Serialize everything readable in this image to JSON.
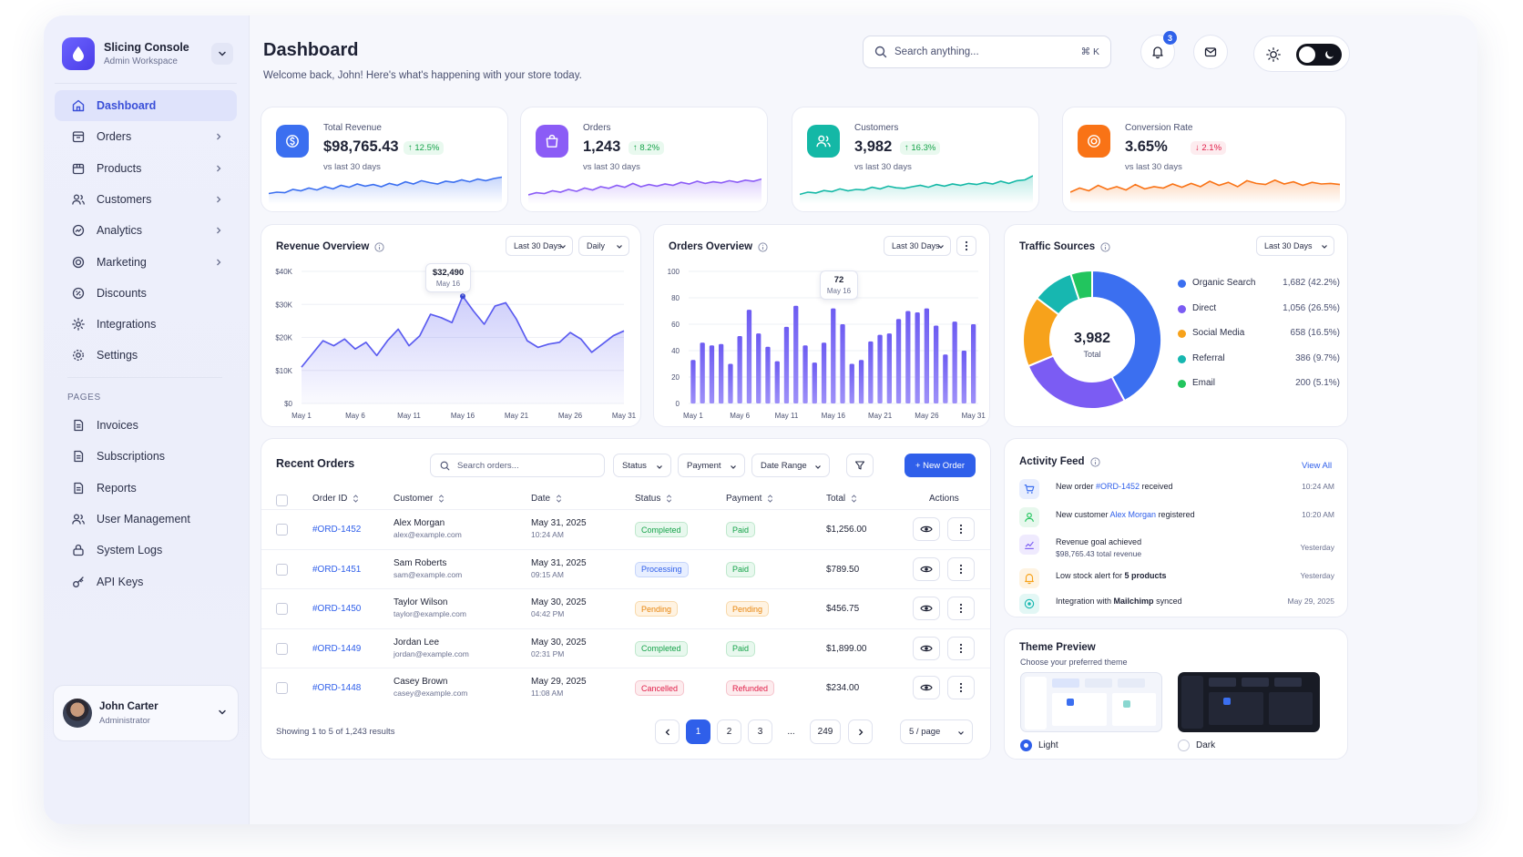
{
  "brand": {
    "title": "Slicing Console",
    "subtitle": "Admin Workspace"
  },
  "sidebar": {
    "items": [
      {
        "label": "Dashboard",
        "icon": "home-icon",
        "active": true
      },
      {
        "label": "Orders",
        "icon": "orders-icon"
      },
      {
        "label": "Products",
        "icon": "box-icon"
      },
      {
        "label": "Customers",
        "icon": "users-icon"
      },
      {
        "label": "Analytics",
        "icon": "analytics-icon"
      },
      {
        "label": "Marketing",
        "icon": "target-icon"
      },
      {
        "label": "Discounts",
        "icon": "discount-icon"
      },
      {
        "label": "Integrations",
        "icon": "gear-icon"
      },
      {
        "label": "Settings",
        "icon": "settings-icon"
      }
    ],
    "pages_label": "PAGES",
    "pages": [
      {
        "label": "Invoices",
        "icon": "document-icon"
      },
      {
        "label": "Subscriptions",
        "icon": "document-icon"
      },
      {
        "label": "Reports",
        "icon": "document-icon"
      },
      {
        "label": "User Management",
        "icon": "users-icon"
      },
      {
        "label": "System Logs",
        "icon": "lock-icon"
      },
      {
        "label": "API Keys",
        "icon": "key-icon"
      }
    ]
  },
  "user": {
    "name": "John Carter",
    "role": "Administrator"
  },
  "header": {
    "title": "Dashboard",
    "subtitle": "Welcome back, John! Here's what's happening with your store today.",
    "search_placeholder": "Search anything...",
    "search_shortcut": "⌘ K",
    "notification_count": "3"
  },
  "stats": [
    {
      "label": "Total Revenue",
      "value": "$98,765.43",
      "change": "↑ 12.5%",
      "trend": "up",
      "sub": "vs last 30 days",
      "color": "#3b6ff0",
      "icon": "dollar-icon"
    },
    {
      "label": "Orders",
      "value": "1,243",
      "change": "↑ 8.2%",
      "trend": "up",
      "sub": "vs last 30 days",
      "color": "#8b5cf6",
      "icon": "bag-icon"
    },
    {
      "label": "Customers",
      "value": "3,982",
      "change": "↑ 16.3%",
      "trend": "up",
      "sub": "vs last 30 days",
      "color": "#14b8a6",
      "icon": "users-icon"
    },
    {
      "label": "Conversion Rate",
      "value": "3.65%",
      "change": "↓ 2.1%",
      "trend": "down",
      "sub": "vs last 30 days",
      "color": "#f97316",
      "icon": "target-icon"
    }
  ],
  "revenue_overview": {
    "title": "Revenue Overview",
    "range": "Last 30 Days",
    "interval": "Daily",
    "tooltip": {
      "value": "$32,490",
      "date": "May 16"
    },
    "y_ticks": [
      "$40K",
      "$30K",
      "$20K",
      "$10K",
      "$0"
    ],
    "x_ticks": [
      "May 1",
      "May 6",
      "May 11",
      "May 16",
      "May 21",
      "May 26",
      "May 31"
    ]
  },
  "orders_overview": {
    "title": "Orders Overview",
    "range": "Last 30 Days",
    "tooltip": {
      "value": "72",
      "date": "May 16"
    },
    "y_ticks": [
      "100",
      "80",
      "60",
      "40",
      "20",
      "0"
    ],
    "x_ticks": [
      "May 1",
      "May 6",
      "May 11",
      "May 16",
      "May 21",
      "May 26",
      "May 31"
    ]
  },
  "chart_data": [
    {
      "type": "area",
      "title": "Revenue Overview",
      "x": [
        "May 1",
        "May 2",
        "May 3",
        "May 4",
        "May 5",
        "May 6",
        "May 7",
        "May 8",
        "May 9",
        "May 10",
        "May 11",
        "May 12",
        "May 13",
        "May 14",
        "May 15",
        "May 16",
        "May 17",
        "May 18",
        "May 19",
        "May 20",
        "May 21",
        "May 22",
        "May 23",
        "May 24",
        "May 25",
        "May 26",
        "May 27",
        "May 28",
        "May 29",
        "May 30",
        "May 31"
      ],
      "values": [
        11000,
        15000,
        19000,
        17500,
        19500,
        16500,
        18500,
        14500,
        19000,
        22500,
        17500,
        20500,
        27000,
        26000,
        24500,
        32490,
        28000,
        24000,
        29500,
        30500,
        25500,
        19000,
        17000,
        18000,
        18500,
        21500,
        19500,
        15500,
        18000,
        20500,
        22000
      ],
      "ylim": [
        0,
        40000
      ],
      "color": "#5b5cf0"
    },
    {
      "type": "bar",
      "title": "Orders Overview",
      "x": [
        "May 1",
        "May 2",
        "May 3",
        "May 4",
        "May 5",
        "May 6",
        "May 7",
        "May 8",
        "May 9",
        "May 10",
        "May 11",
        "May 12",
        "May 13",
        "May 14",
        "May 15",
        "May 16",
        "May 17",
        "May 18",
        "May 19",
        "May 20",
        "May 21",
        "May 22",
        "May 23",
        "May 24",
        "May 25",
        "May 26",
        "May 27",
        "May 28",
        "May 29",
        "May 30",
        "May 31"
      ],
      "values": [
        33,
        46,
        44,
        45,
        30,
        51,
        71,
        53,
        43,
        32,
        58,
        74,
        44,
        31,
        46,
        72,
        60,
        30,
        33,
        47,
        52,
        53,
        64,
        70,
        69,
        72,
        59,
        37,
        62,
        40,
        60
      ],
      "ylim": [
        0,
        100
      ],
      "color": "#7b6cf6"
    },
    {
      "type": "pie",
      "title": "Traffic Sources",
      "total": "3,982",
      "total_label": "Total",
      "categories": [
        "Organic Search",
        "Direct",
        "Social Media",
        "Referral",
        "Email"
      ],
      "values": [
        1682,
        1056,
        658,
        386,
        200
      ],
      "colors": [
        "#3b6ff0",
        "#7b5cf3",
        "#f7a21b",
        "#17b7b0",
        "#22c55e"
      ]
    }
  ],
  "traffic": {
    "title": "Traffic Sources",
    "range": "Last 30 Days",
    "legend": [
      {
        "name": "Organic Search",
        "value": "1,682 (42.2%)",
        "color": "#3b6ff0"
      },
      {
        "name": "Direct",
        "value": "1,056 (26.5%)",
        "color": "#7b5cf3"
      },
      {
        "name": "Social Media",
        "value": "658 (16.5%)",
        "color": "#f7a21b"
      },
      {
        "name": "Referral",
        "value": "386 (9.7%)",
        "color": "#17b7b0"
      },
      {
        "name": "Email",
        "value": "200 (5.1%)",
        "color": "#22c55e"
      }
    ]
  },
  "orders_table": {
    "title": "Recent Orders",
    "search_placeholder": "Search orders...",
    "filters": [
      "Status",
      "Payment",
      "Date Range"
    ],
    "new_label": "+ New Order",
    "columns": [
      "Order ID",
      "Customer",
      "Date",
      "Status",
      "Payment",
      "Total",
      "Actions"
    ],
    "rows": [
      {
        "id": "#ORD-1452",
        "name": "Alex Morgan",
        "email": "alex@example.com",
        "date": "May 31, 2025",
        "time": "10:24 AM",
        "status": "Completed",
        "payment": "Paid",
        "total": "$1,256.00"
      },
      {
        "id": "#ORD-1451",
        "name": "Sam Roberts",
        "email": "sam@example.com",
        "date": "May 31, 2025",
        "time": "09:15 AM",
        "status": "Processing",
        "payment": "Paid",
        "total": "$789.50"
      },
      {
        "id": "#ORD-1450",
        "name": "Taylor Wilson",
        "email": "taylor@example.com",
        "date": "May 30, 2025",
        "time": "04:42 PM",
        "status": "Pending",
        "payment": "Pending",
        "total": "$456.75"
      },
      {
        "id": "#ORD-1449",
        "name": "Jordan Lee",
        "email": "jordan@example.com",
        "date": "May 30, 2025",
        "time": "02:31 PM",
        "status": "Completed",
        "payment": "Paid",
        "total": "$1,899.00"
      },
      {
        "id": "#ORD-1448",
        "name": "Casey Brown",
        "email": "casey@example.com",
        "date": "May 29, 2025",
        "time": "11:08 AM",
        "status": "Cancelled",
        "payment": "Refunded",
        "total": "$234.00"
      }
    ],
    "showing": "Showing 1 to 5 of 1,243 results",
    "pages": [
      "1",
      "2",
      "3",
      "...",
      "249"
    ],
    "per_page": "5 / page"
  },
  "activity": {
    "title": "Activity Feed",
    "view_all": "View All",
    "items": [
      {
        "pre": "New order ",
        "link": "#ORD-1452",
        "post": " received",
        "line2": "",
        "time": "10:24 AM",
        "color": "#3b6ff0",
        "bg": "#e8eefe",
        "icon": "cart-icon"
      },
      {
        "pre": "New customer ",
        "link": "Alex Morgan",
        "post": " registered",
        "line2": "",
        "time": "10:20 AM",
        "color": "#22c55e",
        "bg": "#e7f8ed",
        "icon": "user-icon"
      },
      {
        "pre": "Revenue goal achieved",
        "link": "",
        "post": "",
        "line2": "$98,765.43 total revenue",
        "time": "Yesterday",
        "color": "#7b5cf3",
        "bg": "#efeafe",
        "icon": "chart-icon"
      },
      {
        "pre": "Low stock alert for ",
        "link": "",
        "post": "",
        "bold": "5 products",
        "line2": "",
        "time": "Yesterday",
        "color": "#f7a21b",
        "bg": "#fef3e2",
        "icon": "bell-icon"
      },
      {
        "pre": "Integration with ",
        "link": "",
        "post": " synced",
        "bold": "Mailchimp",
        "line2": "",
        "time": "May 29, 2025",
        "color": "#17b7b0",
        "bg": "#e3f7f5",
        "icon": "sync-icon"
      }
    ]
  },
  "theme_preview": {
    "title": "Theme Preview",
    "subtitle": "Choose your preferred theme",
    "light": "Light",
    "dark": "Dark",
    "selected": "Light"
  }
}
